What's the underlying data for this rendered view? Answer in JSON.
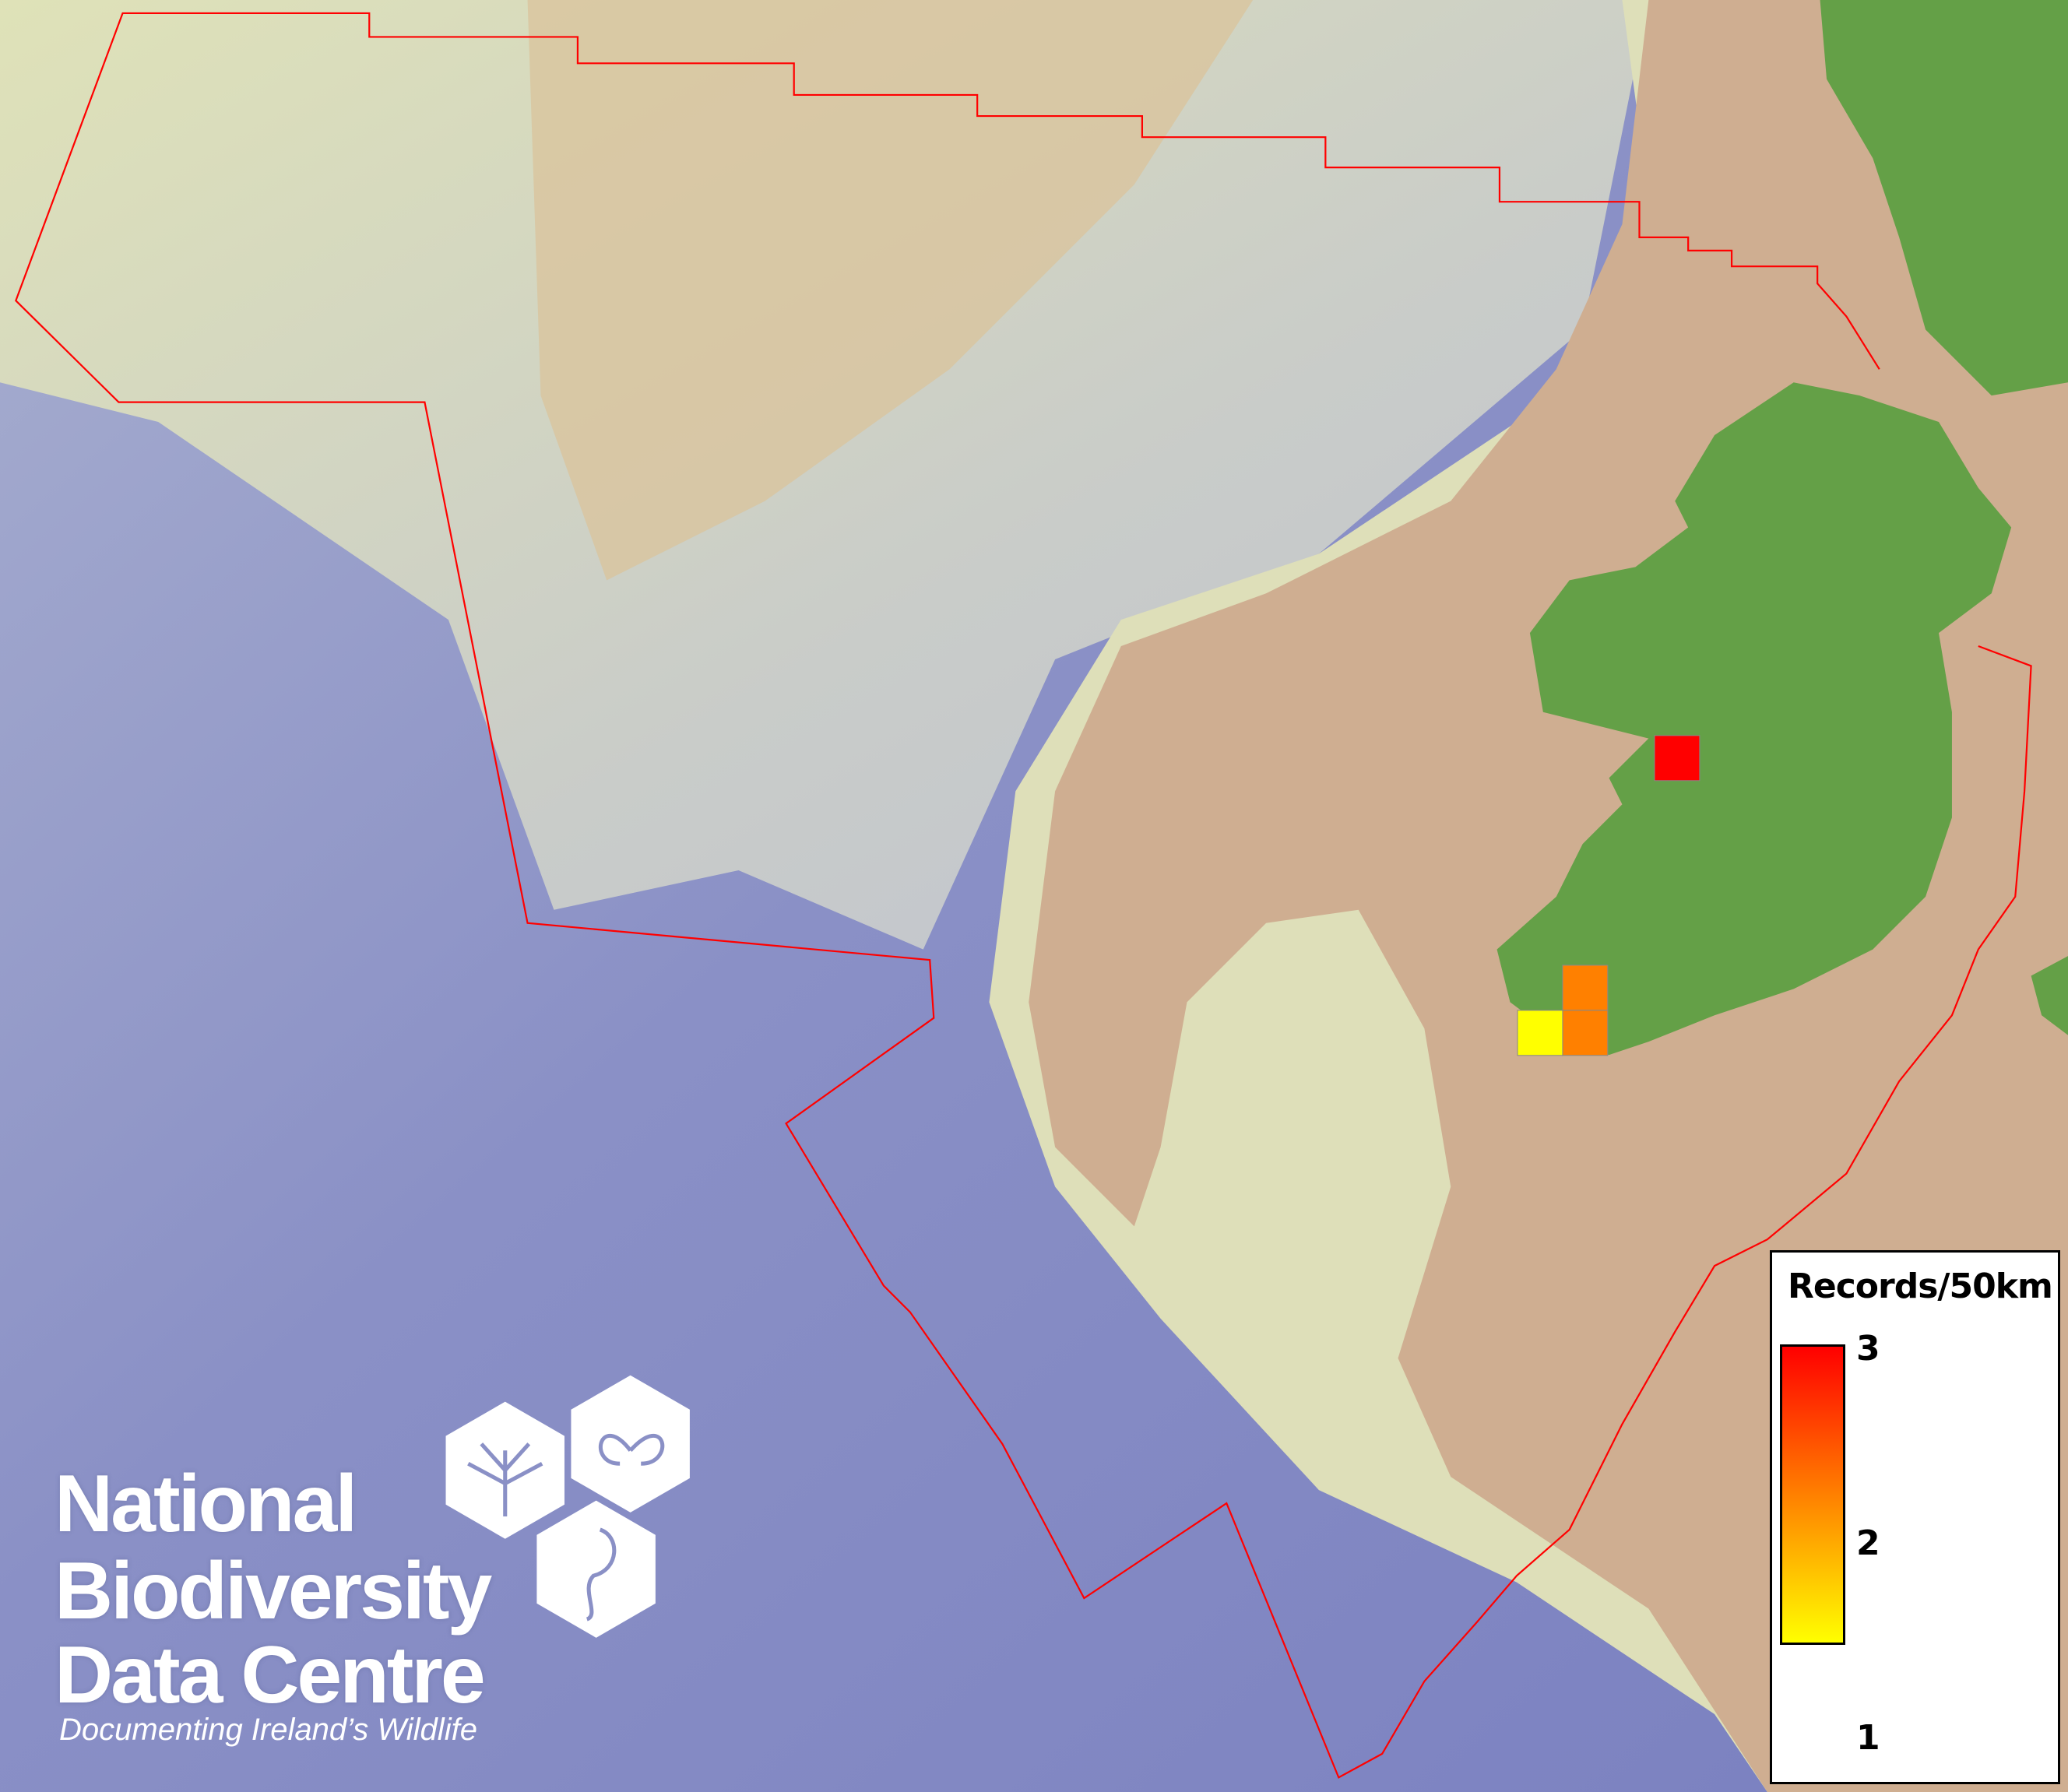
{
  "map": {
    "colors": {
      "deep_ocean": "#7c83c2",
      "slope": "#d9dcc0",
      "shelf": "#cfae91",
      "land": "#64a047",
      "boundary": "#ff0000"
    },
    "grid_cells": [
      {
        "value": 3,
        "color": "#ff0000"
      },
      {
        "value": 2,
        "color": "#ff8000"
      },
      {
        "value": 2,
        "color": "#ff8000"
      },
      {
        "value": 1,
        "color": "#ffff00"
      }
    ]
  },
  "legend": {
    "title": "Records/50km",
    "max_label": "3",
    "mid_label": "2",
    "min_label": "1",
    "gradient": [
      "#ffff00",
      "#ff8000",
      "#ff0000"
    ]
  },
  "logo": {
    "line1": "National",
    "line2": "Biodiversity",
    "line3": "Data Centre",
    "tagline": "Documenting Ireland’s Wildlife",
    "icons": [
      "tree-icon",
      "butterfly-icon",
      "seahorse-icon"
    ]
  }
}
